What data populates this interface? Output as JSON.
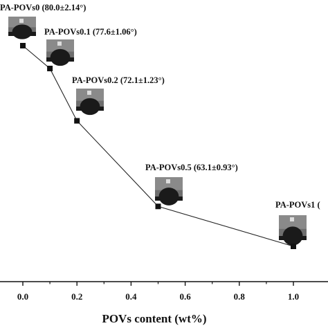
{
  "chart_data": {
    "type": "line",
    "title": "",
    "xlabel": "POVs content (wt%)",
    "ylabel": "",
    "xlim": [
      -0.05,
      1.05
    ],
    "x_ticks": [
      "0.0",
      "0.2",
      "0.4",
      "0.6",
      "0.8",
      "1.0"
    ],
    "grid": false,
    "series": [
      {
        "x": [
          0.0,
          0.1,
          0.2,
          0.5,
          1.0
        ],
        "y": [
          80.0,
          77.6,
          72.1,
          63.1,
          58.9
        ]
      }
    ],
    "annotations": [
      {
        "x": 0.0,
        "text": "PA-POVs0 (80.0±2.14°)"
      },
      {
        "x": 0.1,
        "text": "PA-POVs0.1 (77.6±1.06°)"
      },
      {
        "x": 0.2,
        "text": "PA-POVs0.2 (72.1±1.23°)"
      },
      {
        "x": 0.5,
        "text": "PA-POVs0.5 (63.1±0.93°)"
      },
      {
        "x": 1.0,
        "text": "PA-POVs1 ("
      }
    ],
    "colors": {
      "line": "#222222",
      "marker": "#111111",
      "axis": "#111111",
      "droplet": "#1a1a1a",
      "photo_bg": "#6e6e6e"
    }
  }
}
